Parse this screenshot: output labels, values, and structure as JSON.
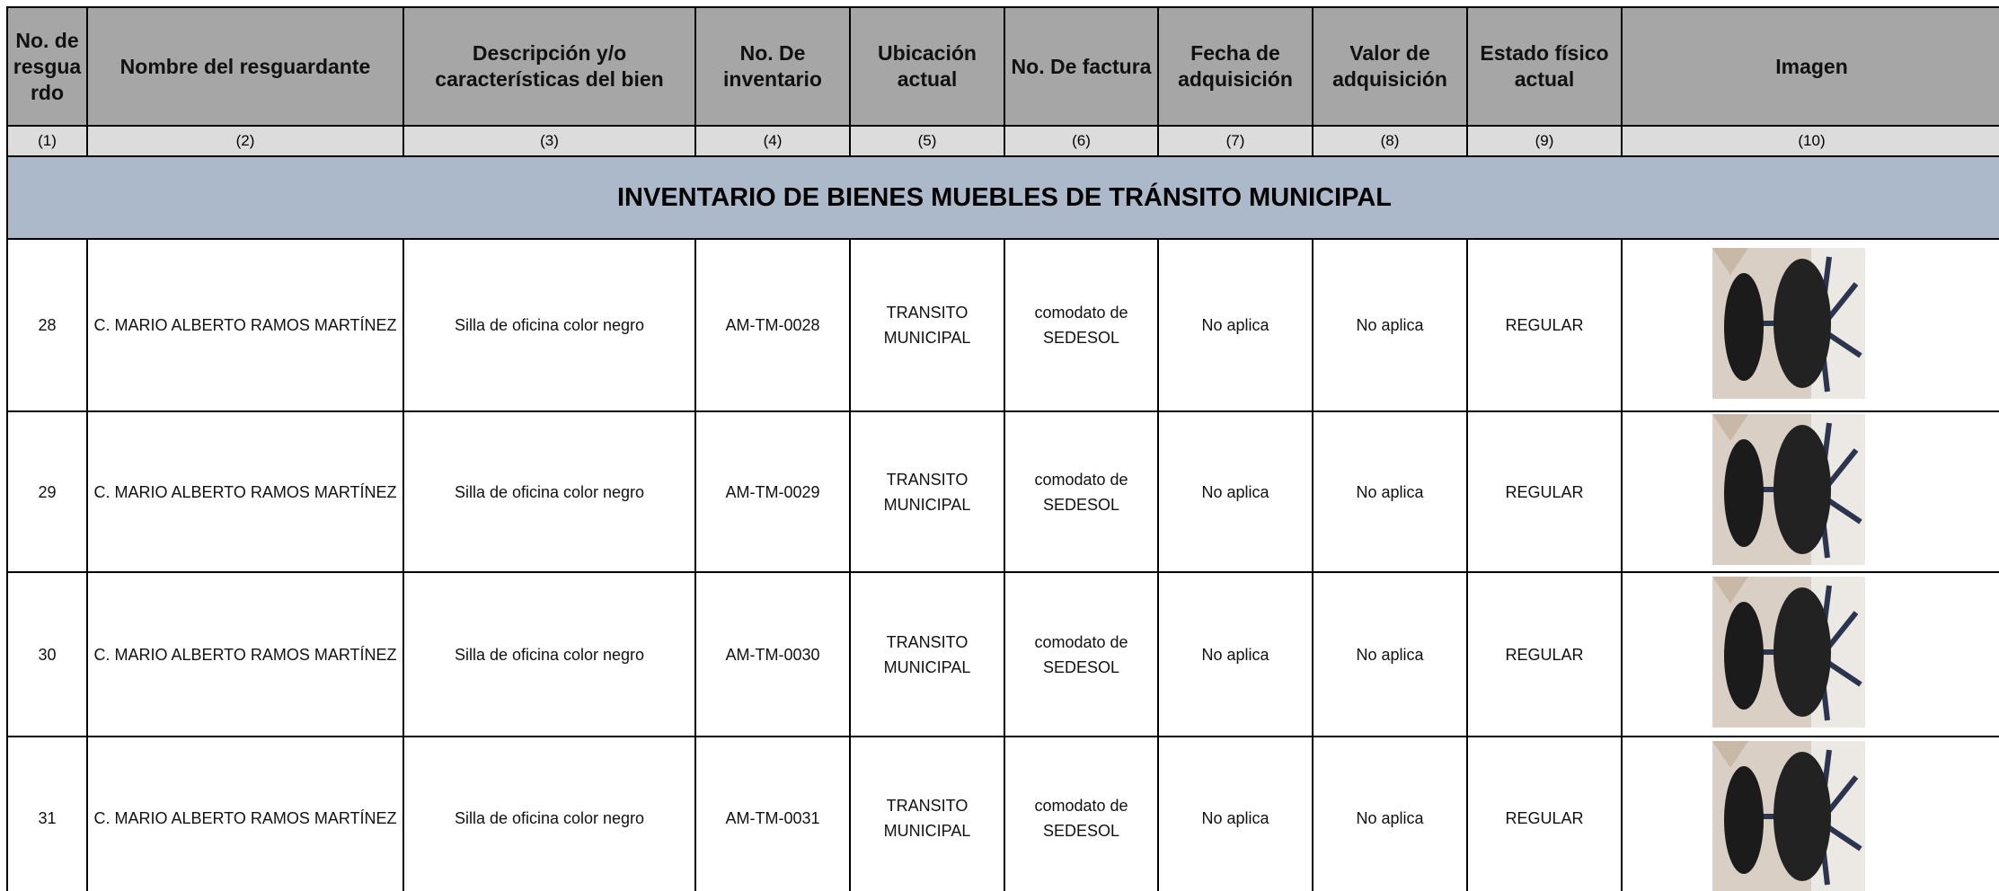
{
  "table": {
    "headers": [
      "No. de resguardo",
      "Nombre del resguardante",
      "Descripción y/o características del bien",
      "No. De inventario",
      "Ubicación actual",
      "No. De factura",
      "Fecha de adquisición",
      "Valor de adquisición",
      "Estado físico actual",
      "Imagen"
    ],
    "column_numbers": [
      "(1)",
      "(2)",
      "(3)",
      "(4)",
      "(5)",
      "(6)",
      "(7)",
      "(8)",
      "(9)",
      "(10)"
    ],
    "section_title": "INVENTARIO DE BIENES MUEBLES DE TRÁNSITO MUNICIPAL",
    "rows": [
      [
        "28",
        "C. MARIO ALBERTO RAMOS MARTÍNEZ",
        "Silla de oficina color negro",
        "AM-TM-0028",
        "TRANSITO MUNICIPAL",
        "comodato de SEDESOL",
        "No aplica",
        "No aplica",
        "REGULAR"
      ],
      [
        "29",
        "C. MARIO ALBERTO RAMOS MARTÍNEZ",
        "Silla de oficina color negro",
        "AM-TM-0029",
        "TRANSITO MUNICIPAL",
        "comodato de SEDESOL",
        "No aplica",
        "No aplica",
        "REGULAR"
      ],
      [
        "30",
        "C. MARIO ALBERTO RAMOS MARTÍNEZ",
        "Silla de oficina color negro",
        "AM-TM-0030",
        "TRANSITO MUNICIPAL",
        "comodato de SEDESOL",
        "No aplica",
        "No aplica",
        "REGULAR"
      ],
      [
        "31",
        "C. MARIO ALBERTO RAMOS MARTÍNEZ",
        "Silla de oficina color negro",
        "AM-TM-0031",
        "TRANSITO MUNICIPAL",
        "comodato de SEDESOL",
        "No aplica",
        "No aplica",
        "REGULAR"
      ]
    ]
  }
}
